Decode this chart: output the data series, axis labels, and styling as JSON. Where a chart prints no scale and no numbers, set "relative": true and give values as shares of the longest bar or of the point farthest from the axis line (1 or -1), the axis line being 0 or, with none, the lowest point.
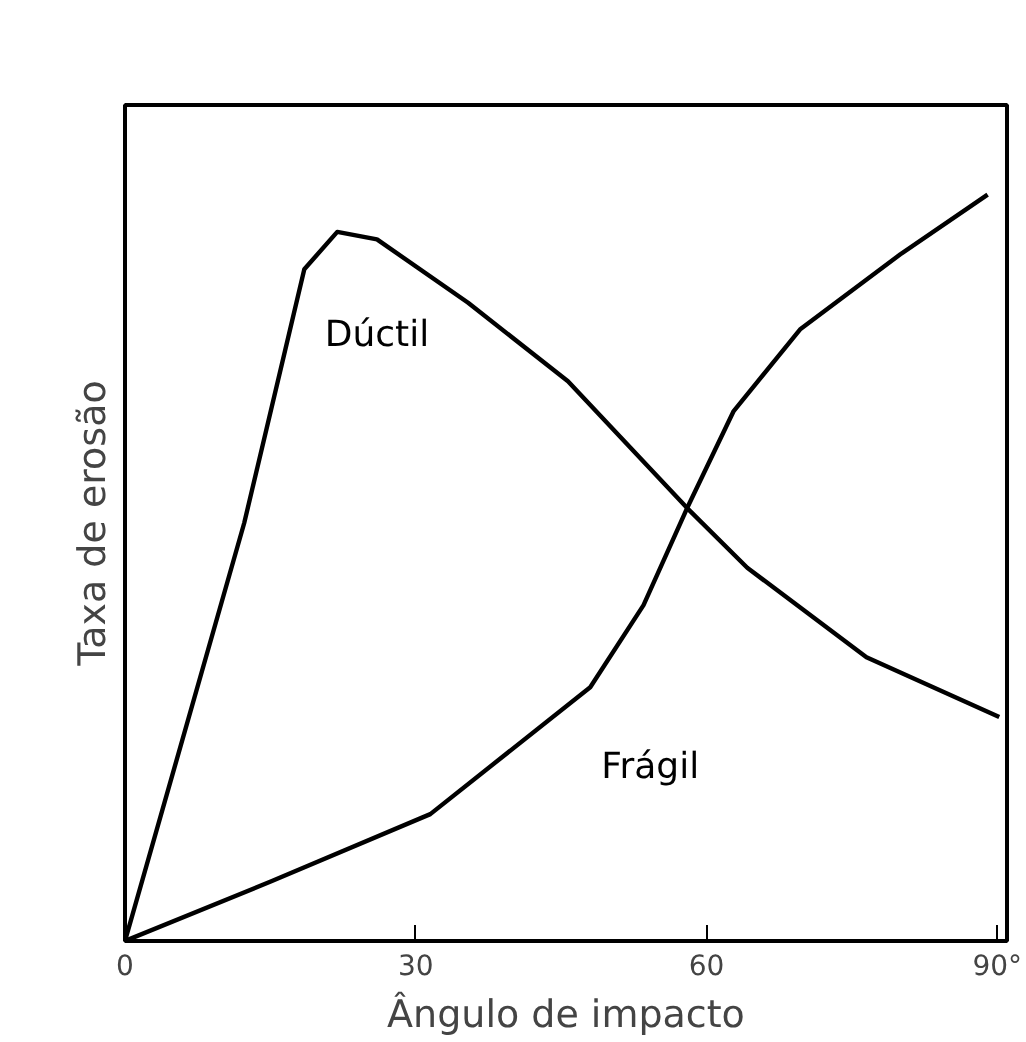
{
  "chart_data": {
    "type": "line",
    "xlabel": "Ângulo de impacto",
    "ylabel": "Taxa de erosão",
    "relative": true,
    "grid": false,
    "marker": "none",
    "line_style": "solid",
    "xlim": [
      0,
      91
    ],
    "xticks": [
      0,
      30,
      60,
      {
        "value": 90,
        "label": "90°"
      }
    ],
    "series": [
      {
        "name": "Dúctil",
        "color": "#000000",
        "x": [
          0,
          12.3,
          16.5,
          18.5,
          21.9,
          26,
          35.4,
          45.7,
          58,
          64.2,
          76.5,
          90.2
        ],
        "values": [
          0,
          0.56,
          0.79,
          0.9,
          0.95,
          0.94,
          0.855,
          0.75,
          0.58,
          0.5,
          0.38,
          0.3
        ]
      },
      {
        "name": "Frágil",
        "color": "#000000",
        "x": [
          0,
          15.1,
          31.5,
          48,
          53.5,
          58,
          62.8,
          69.7,
          80,
          89
        ],
        "values": [
          0,
          0.08,
          0.17,
          0.34,
          0.45,
          0.58,
          0.71,
          0.82,
          0.92,
          1.0
        ]
      }
    ]
  }
}
